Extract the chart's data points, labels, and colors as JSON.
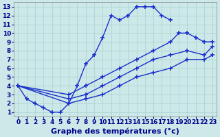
{
  "xlabel": "Graphe des températures (°c)",
  "bg_color": "#cce8e8",
  "line_color": "#1a2fcc",
  "xlim": [
    -0.5,
    23.5
  ],
  "ylim": [
    0.5,
    13.5
  ],
  "xticks": [
    0,
    1,
    2,
    3,
    4,
    5,
    6,
    7,
    8,
    9,
    10,
    11,
    12,
    13,
    14,
    15,
    16,
    17,
    18,
    19,
    20,
    21,
    22,
    23
  ],
  "yticks": [
    1,
    2,
    3,
    4,
    5,
    6,
    7,
    8,
    9,
    10,
    11,
    12,
    13
  ],
  "line1_x": [
    0,
    1,
    2,
    3,
    4,
    5,
    6,
    7,
    8,
    9,
    10,
    11,
    12,
    13,
    14,
    15,
    16,
    17,
    18
  ],
  "line1_y": [
    4,
    2.5,
    2,
    1.5,
    1,
    1,
    2,
    4,
    6.5,
    7.5,
    9.5,
    12,
    11.5,
    12,
    13,
    13,
    13,
    12,
    11.5
  ],
  "line2_x": [
    0,
    6,
    8,
    10,
    12,
    14,
    16,
    18,
    19,
    20,
    21,
    22,
    23
  ],
  "line2_y": [
    4,
    3,
    4,
    5,
    6,
    7,
    8,
    9,
    10,
    10,
    9.5,
    9,
    9
  ],
  "line3_x": [
    0,
    6,
    8,
    10,
    12,
    14,
    16,
    18,
    20,
    22,
    23
  ],
  "line3_y": [
    4,
    2.5,
    3,
    4,
    5,
    6,
    7,
    7.5,
    8,
    7.5,
    8.5
  ],
  "line4_x": [
    0,
    6,
    8,
    10,
    12,
    14,
    16,
    18,
    20,
    22,
    23
  ],
  "line4_y": [
    4,
    2,
    2.5,
    3,
    4,
    5,
    5.5,
    6,
    7,
    7,
    7.5
  ],
  "grid_color": "#aacfcf",
  "fontsize_label": 8,
  "fontsize_tick": 6.5
}
